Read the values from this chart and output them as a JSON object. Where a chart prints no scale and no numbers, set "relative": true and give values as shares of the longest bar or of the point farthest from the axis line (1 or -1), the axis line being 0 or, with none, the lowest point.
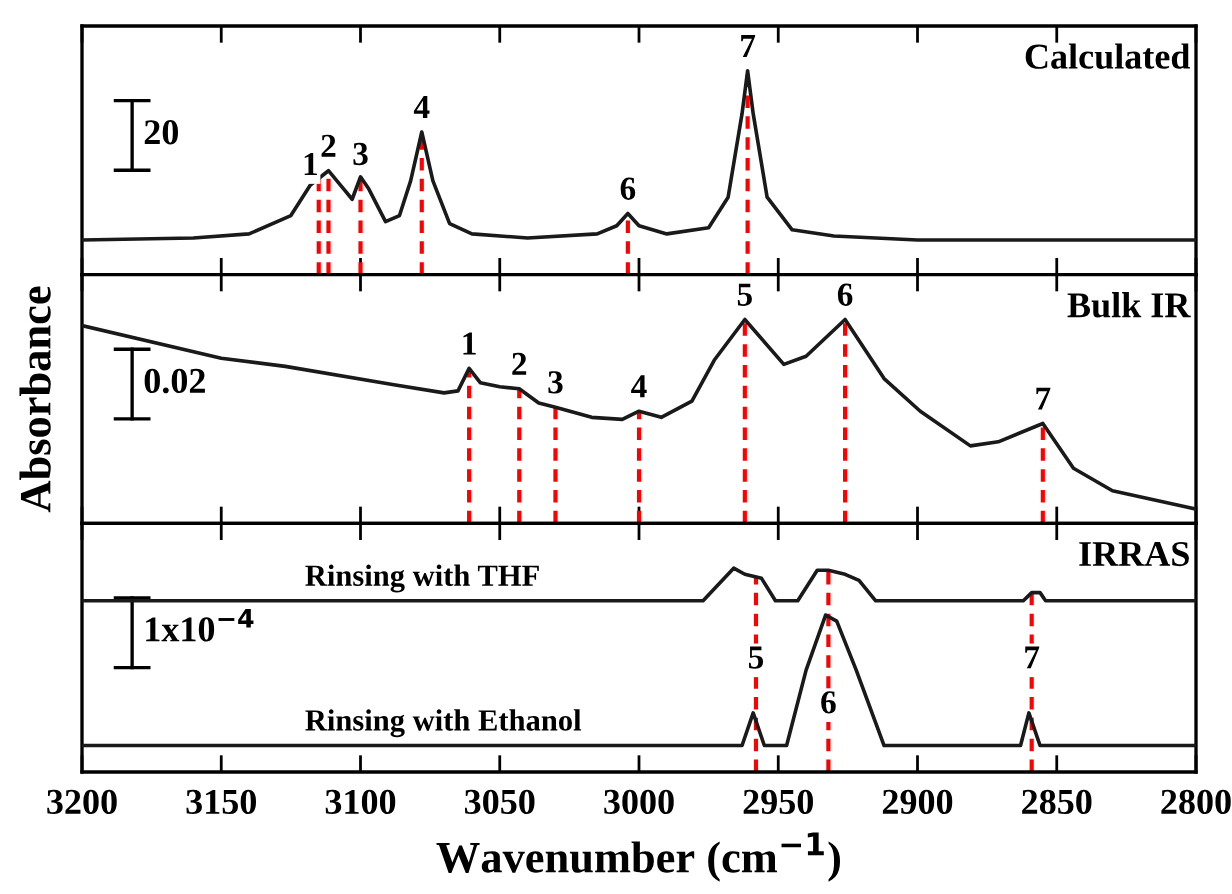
{
  "chart_data": [
    {
      "type": "line",
      "relative": true,
      "xlim": [
        3200,
        2800
      ],
      "xticks": [
        {
          "value": 3200,
          "label": null
        },
        {
          "value": 3150,
          "label": null
        },
        {
          "value": 3100,
          "label": null
        },
        {
          "value": 3050,
          "label": null
        },
        {
          "value": 3000,
          "label": null
        },
        {
          "value": 2950,
          "label": null
        },
        {
          "value": 2900,
          "label": null
        },
        {
          "value": 2850,
          "label": null
        },
        {
          "value": 2800,
          "label": null
        }
      ],
      "tick_labels": false,
      "series": [
        {
          "color": "#1a1a1a",
          "x": [
            3200,
            3160,
            3140,
            3125,
            3118,
            3111.5,
            3106,
            3103,
            3100,
            3097,
            3091,
            3086,
            3082,
            3078,
            3074,
            3068,
            3060,
            3040,
            3015,
            3008,
            3004,
            3000,
            2990,
            2975,
            2968,
            2963,
            2961,
            2959,
            2954,
            2945,
            2930,
            2900,
            2800
          ],
          "values": [
            0.17,
            0.18,
            0.2,
            0.29,
            0.44,
            0.51,
            0.42,
            0.37,
            0.48,
            0.42,
            0.26,
            0.29,
            0.46,
            0.7,
            0.46,
            0.25,
            0.2,
            0.18,
            0.2,
            0.24,
            0.3,
            0.24,
            0.2,
            0.23,
            0.38,
            0.79,
            1.0,
            0.79,
            0.38,
            0.22,
            0.19,
            0.17,
            0.17
          ]
        }
      ],
      "ref_lines": [
        {
          "axis": "x",
          "value": 3115,
          "color": "#ff0000",
          "line_style": "dashed"
        },
        {
          "axis": "x",
          "value": 3111.5,
          "color": "#ff0000",
          "line_style": "dashed"
        },
        {
          "axis": "x",
          "value": 3100,
          "color": "#ff0000",
          "line_style": "dashed"
        },
        {
          "axis": "x",
          "value": 3078,
          "color": "#ff0000",
          "line_style": "dashed"
        },
        {
          "axis": "x",
          "value": 3004,
          "color": "#ff0000",
          "line_style": "dashed"
        },
        {
          "axis": "x",
          "value": 2961,
          "color": "#ff0000",
          "line_style": "dashed"
        }
      ],
      "annotations": [
        "Calculated",
        "20",
        {
          "text": "1",
          "x": 3118,
          "y": 0.44
        },
        {
          "text": "2",
          "x": 3111.5,
          "y": 0.53
        },
        {
          "text": "3",
          "x": 3100,
          "y": 0.49
        },
        {
          "text": "4",
          "x": 3078,
          "y": 0.72
        },
        {
          "text": "6",
          "x": 3004,
          "y": 0.32
        },
        {
          "text": "7",
          "x": 2961,
          "y": 1.02
        }
      ]
    },
    {
      "type": "line",
      "relative": true,
      "ylabel": "Absorbance",
      "xlim": [
        3200,
        2800
      ],
      "xticks": [
        {
          "value": 3200,
          "label": null
        },
        {
          "value": 3150,
          "label": null
        },
        {
          "value": 3100,
          "label": null
        },
        {
          "value": 3050,
          "label": null
        },
        {
          "value": 3000,
          "label": null
        },
        {
          "value": 2950,
          "label": null
        },
        {
          "value": 2900,
          "label": null
        },
        {
          "value": 2850,
          "label": null
        },
        {
          "value": 2800,
          "label": null
        }
      ],
      "tick_labels": false,
      "series": [
        {
          "color": "#1a1a1a",
          "x": [
            3200,
            3150,
            3127,
            3088,
            3070,
            3065,
            3061,
            3057,
            3050,
            3043,
            3036,
            3030,
            3017,
            3006,
            3000,
            2992,
            2981,
            2973,
            2962,
            2948,
            2940,
            2926,
            2912,
            2899,
            2881,
            2871,
            2855,
            2844,
            2830,
            2800
          ],
          "values": [
            0.97,
            0.81,
            0.77,
            0.68,
            0.64,
            0.65,
            0.76,
            0.69,
            0.67,
            0.66,
            0.59,
            0.57,
            0.52,
            0.51,
            0.55,
            0.52,
            0.6,
            0.8,
            1.0,
            0.78,
            0.82,
            1.0,
            0.71,
            0.55,
            0.38,
            0.4,
            0.49,
            0.27,
            0.16,
            0.07
          ]
        }
      ],
      "ref_lines": [
        {
          "axis": "x",
          "value": 3061,
          "color": "#ff0000",
          "line_style": "dashed"
        },
        {
          "axis": "x",
          "value": 3043,
          "color": "#ff0000",
          "line_style": "dashed"
        },
        {
          "axis": "x",
          "value": 3030,
          "color": "#ff0000",
          "line_style": "dashed"
        },
        {
          "axis": "x",
          "value": 3000,
          "color": "#ff0000",
          "line_style": "dashed"
        },
        {
          "axis": "x",
          "value": 2962,
          "color": "#ff0000",
          "line_style": "dashed"
        },
        {
          "axis": "x",
          "value": 2926,
          "color": "#ff0000",
          "line_style": "dashed"
        },
        {
          "axis": "x",
          "value": 2855,
          "color": "#ff0000",
          "line_style": "dashed"
        }
      ],
      "annotations": [
        "Bulk IR",
        "0.02",
        {
          "text": "1",
          "x": 3061,
          "y": 0.78
        },
        {
          "text": "2",
          "x": 3043,
          "y": 0.68
        },
        {
          "text": "3",
          "x": 3030,
          "y": 0.59
        },
        {
          "text": "4",
          "x": 3000,
          "y": 0.57
        },
        {
          "text": "5",
          "x": 2962,
          "y": 1.02
        },
        {
          "text": "6",
          "x": 2926,
          "y": 1.02
        },
        {
          "text": "7",
          "x": 2855,
          "y": 0.51
        }
      ]
    },
    {
      "type": "line",
      "relative": true,
      "xlabel": "Wavenumber (cm$^{−1}$)",
      "xlim": [
        3200,
        2800
      ],
      "xticks": [
        3200,
        3150,
        3100,
        3050,
        3000,
        2950,
        2900,
        2850,
        2800
      ],
      "tick_labels": "x",
      "series": [
        {
          "name": "Rinsing with THF",
          "color": "#1a1a1a",
          "x": [
            3200,
            2977,
            2966,
            2962,
            2956,
            2951,
            2943,
            2936,
            2932,
            2926,
            2921,
            2915,
            2862,
            2859,
            2856,
            2854,
            2800
          ],
          "values": [
            0.84,
            0.84,
            1.0,
            0.97,
            0.95,
            0.84,
            0.84,
            0.99,
            0.99,
            0.97,
            0.94,
            0.84,
            0.84,
            0.88,
            0.88,
            0.84,
            0.84
          ]
        },
        {
          "name": "Rinsing with Ethanol",
          "color": "#1a1a1a",
          "x": [
            3200,
            2963,
            2959,
            2955,
            2947,
            2940,
            2933,
            2929,
            2922,
            2912,
            2863,
            2860,
            2856,
            2800
          ],
          "values": [
            0.13,
            0.13,
            0.29,
            0.13,
            0.13,
            0.5,
            0.77,
            0.74,
            0.5,
            0.13,
            0.13,
            0.29,
            0.13,
            0.13
          ]
        }
      ],
      "ref_lines": [
        {
          "axis": "x",
          "value": 2958,
          "color": "#ff0000",
          "line_style": "dashed"
        },
        {
          "axis": "x",
          "value": 2932,
          "color": "#ff0000",
          "line_style": "dashed"
        },
        {
          "axis": "x",
          "value": 2859,
          "color": "#ff0000",
          "line_style": "dashed"
        }
      ],
      "annotations": [
        "IRRAS",
        "1x10$^{−4}$",
        {
          "text": "5",
          "x": 2958,
          "y": 0.46
        },
        {
          "text": "6",
          "x": 2932,
          "y": 0.24
        },
        {
          "text": "7",
          "x": 2859,
          "y": 0.46
        }
      ]
    }
  ]
}
